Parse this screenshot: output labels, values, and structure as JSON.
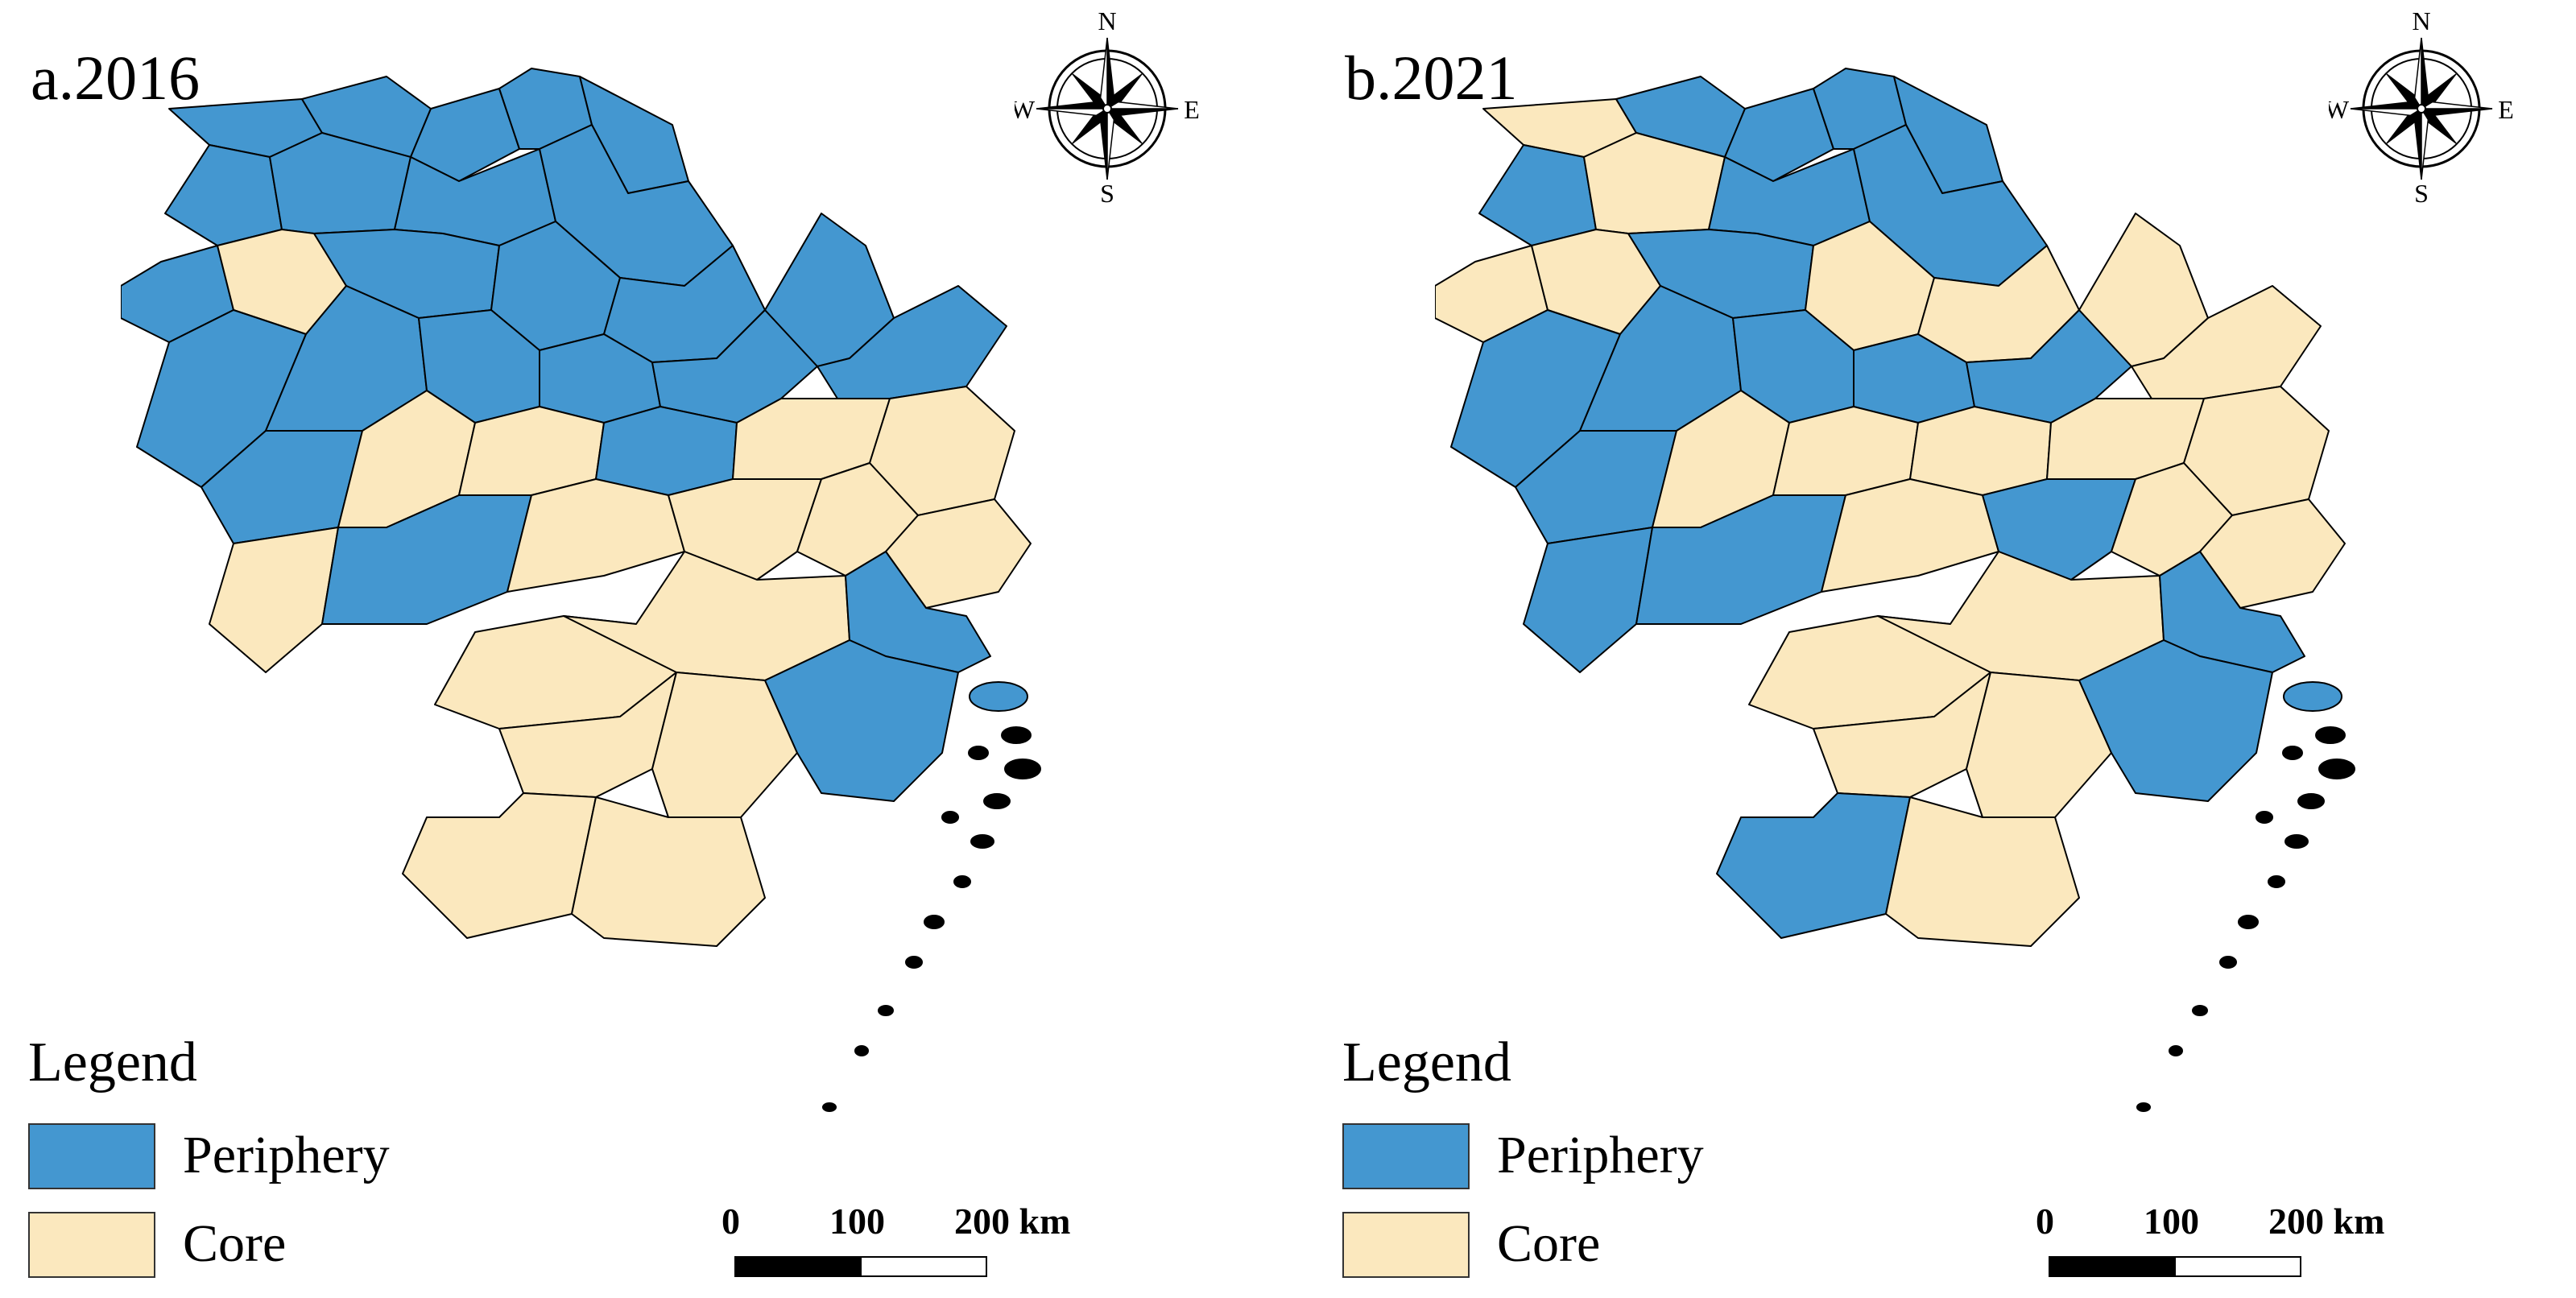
{
  "colors": {
    "periphery": "#4497d0",
    "core": "#fbe8be",
    "border": "#000000",
    "background": "#ffffff"
  },
  "legend": {
    "title": "Legend",
    "items": [
      {
        "label": "Periphery",
        "color": "#4497d0"
      },
      {
        "label": "Core",
        "color": "#fbe8be"
      }
    ]
  },
  "compass": {
    "north": "N",
    "south": "S",
    "east": "E",
    "west": "W"
  },
  "scale_bar": {
    "ticks": [
      "0",
      "100",
      "200 km"
    ]
  },
  "maps": [
    {
      "title": "a.2016",
      "regions": {
        "R1": "periphery",
        "R2": "periphery",
        "R3": "periphery",
        "R4": "periphery",
        "R5": "periphery",
        "R6": "periphery",
        "R7": "periphery",
        "R8": "periphery",
        "R9": "periphery",
        "R10": "periphery",
        "R11": "core",
        "R12": "periphery",
        "R13": "periphery",
        "R14": "periphery",
        "R15": "periphery",
        "R16": "periphery",
        "R17": "periphery",
        "R18": "periphery",
        "R19": "periphery",
        "R20": "periphery",
        "R21": "periphery",
        "R22": "periphery",
        "R23": "core",
        "R24": "core",
        "R25": "periphery",
        "R26": "core",
        "R27": "core",
        "R28": "core",
        "R29": "periphery",
        "R30": "core",
        "R31": "core",
        "R32": "core",
        "R33": "core",
        "R34": "core",
        "R35": "core",
        "R36": "periphery",
        "R37": "core",
        "R38": "core",
        "R39": "core",
        "R40": "core",
        "R41": "periphery"
      }
    },
    {
      "title": "b.2021",
      "regions": {
        "R1": "core",
        "R2": "periphery",
        "R3": "periphery",
        "R4": "periphery",
        "R5": "periphery",
        "R6": "periphery",
        "R7": "core",
        "R8": "periphery",
        "R9": "periphery",
        "R10": "core",
        "R11": "core",
        "R12": "periphery",
        "R13": "core",
        "R14": "core",
        "R15": "periphery",
        "R16": "periphery",
        "R17": "periphery",
        "R18": "periphery",
        "R19": "periphery",
        "R20": "core",
        "R21": "core",
        "R22": "periphery",
        "R23": "core",
        "R24": "core",
        "R25": "core",
        "R26": "core",
        "R27": "core",
        "R28": "periphery",
        "R29": "periphery",
        "R30": "core",
        "R31": "periphery",
        "R32": "core",
        "R33": "core",
        "R34": "core",
        "R35": "core",
        "R36": "periphery",
        "R37": "core",
        "R38": "core",
        "R39": "periphery",
        "R40": "core",
        "R41": "periphery"
      }
    }
  ]
}
